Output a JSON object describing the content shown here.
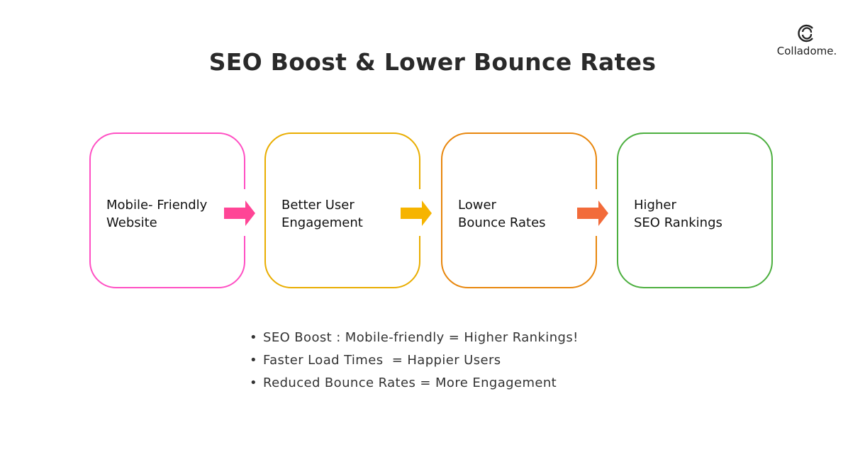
{
  "title": "SEO Boost & Lower Bounce Rates",
  "logo": {
    "text": "Colladome."
  },
  "steps": [
    {
      "label": "Mobile- Friendly\nWebsite",
      "border_color": "#ff4fc3",
      "arrow_color": "#ff4596"
    },
    {
      "label": "Better User\nEngagement",
      "border_color": "#e9ad00",
      "arrow_color": "#f6b400"
    },
    {
      "label": "Lower\nBounce Rates",
      "border_color": "#e8860c",
      "arrow_color": "#f26b3a"
    },
    {
      "label": "Higher\nSEO Rankings",
      "border_color": "#4caf3f"
    }
  ],
  "bullets": [
    "SEO Boost : Mobile-friendly = Higher Rankings!",
    "Faster Load Times  = Happier Users",
    "Reduced Bounce Rates = More Engagement"
  ]
}
